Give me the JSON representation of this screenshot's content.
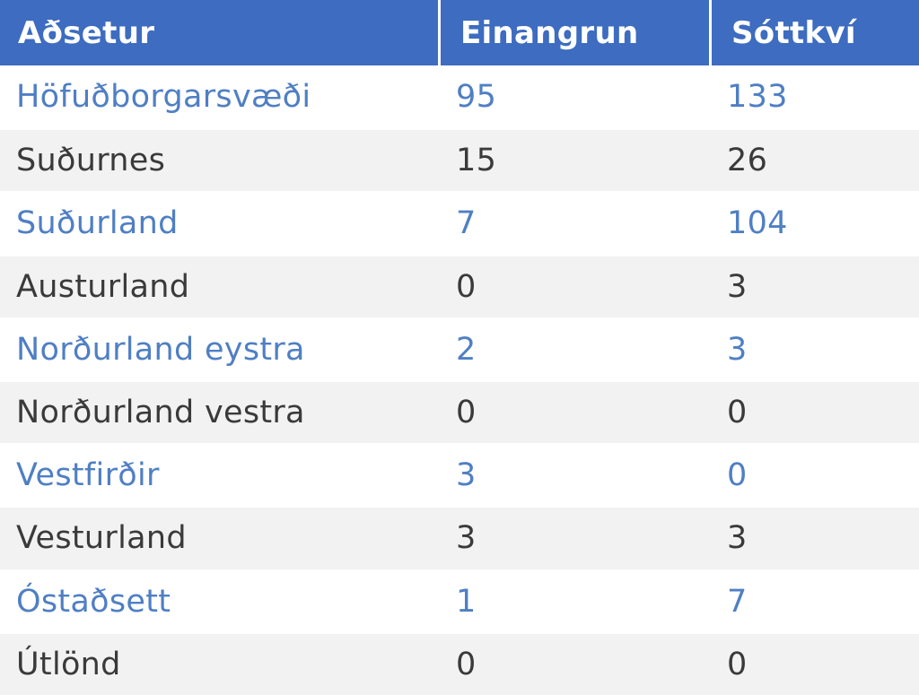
{
  "chart_data": {
    "type": "table",
    "columns": [
      "Aðsetur",
      "Einangrun",
      "Sóttkví"
    ],
    "rows": [
      {
        "region": "Höfuðborgarsvæði",
        "einangrun": "95",
        "sottkvi": "133"
      },
      {
        "region": "Suðurnes",
        "einangrun": "15",
        "sottkvi": "26"
      },
      {
        "region": "Suðurland",
        "einangrun": "7",
        "sottkvi": "104"
      },
      {
        "region": "Austurland",
        "einangrun": "0",
        "sottkvi": "3"
      },
      {
        "region": "Norðurland eystra",
        "einangrun": "2",
        "sottkvi": "3"
      },
      {
        "region": "Norðurland vestra",
        "einangrun": "0",
        "sottkvi": "0"
      },
      {
        "region": "Vestfirðir",
        "einangrun": "3",
        "sottkvi": "0"
      },
      {
        "region": "Vesturland",
        "einangrun": "3",
        "sottkvi": "3"
      },
      {
        "region": "Óstaðsett",
        "einangrun": "1",
        "sottkvi": "7"
      },
      {
        "region": "Útlönd",
        "einangrun": "0",
        "sottkvi": "0"
      }
    ]
  },
  "colors": {
    "header_bg": "#3d6cc0",
    "header_text": "#ffffff",
    "odd_row_text": "#4f7fc4",
    "even_row_text": "#3a3a3a",
    "even_row_bg": "#f2f2f2"
  }
}
